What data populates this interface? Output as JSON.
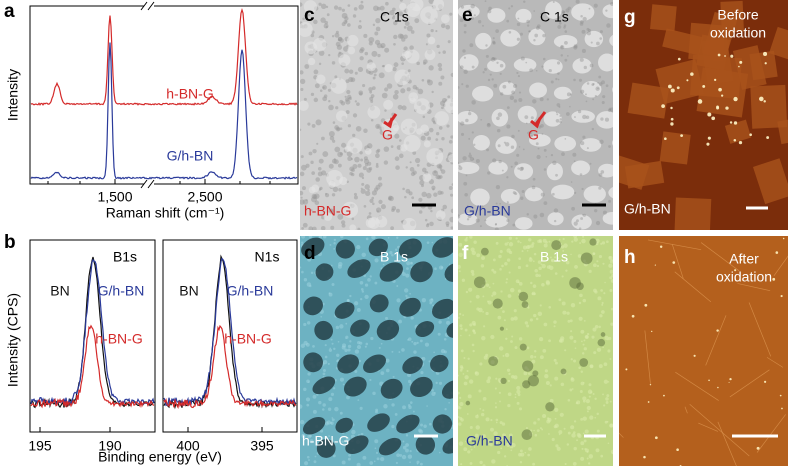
{
  "panels": {
    "a": {
      "label": "a",
      "ylabel": "Intensity",
      "xlabel": "Raman shift (cm⁻¹)",
      "xticks": [
        "1,500",
        "2,500"
      ],
      "series": [
        "h-BN-G",
        "G/h-BN"
      ]
    },
    "b": {
      "label": "b",
      "ylabel": "Intensity (CPS)",
      "xlabel": "Binding energy (eV)",
      "left": {
        "title": "B1s",
        "xticks": [
          "195",
          "190"
        ],
        "labels": [
          "BN",
          "G/h-BN",
          "h-BN-G"
        ]
      },
      "right": {
        "title": "N1s",
        "xticks": [
          "400",
          "395"
        ],
        "labels": [
          "BN",
          "G/h-BN",
          "h-BN-G"
        ]
      }
    },
    "c": {
      "label": "c",
      "title": "C 1s",
      "marker": "G",
      "sample": "h-BN-G"
    },
    "d": {
      "label": "d",
      "title": "B 1s",
      "sample": "h-BN-G"
    },
    "e": {
      "label": "e",
      "title": "C 1s",
      "marker": "G",
      "sample": "G/h-BN"
    },
    "f": {
      "label": "f",
      "title": "B 1s",
      "sample": "G/h-BN"
    },
    "g": {
      "label": "g",
      "title": [
        "Before",
        "oxidation"
      ],
      "sample": "G/h-BN"
    },
    "h": {
      "label": "h",
      "title": [
        "After",
        "oxidation"
      ]
    }
  }
}
